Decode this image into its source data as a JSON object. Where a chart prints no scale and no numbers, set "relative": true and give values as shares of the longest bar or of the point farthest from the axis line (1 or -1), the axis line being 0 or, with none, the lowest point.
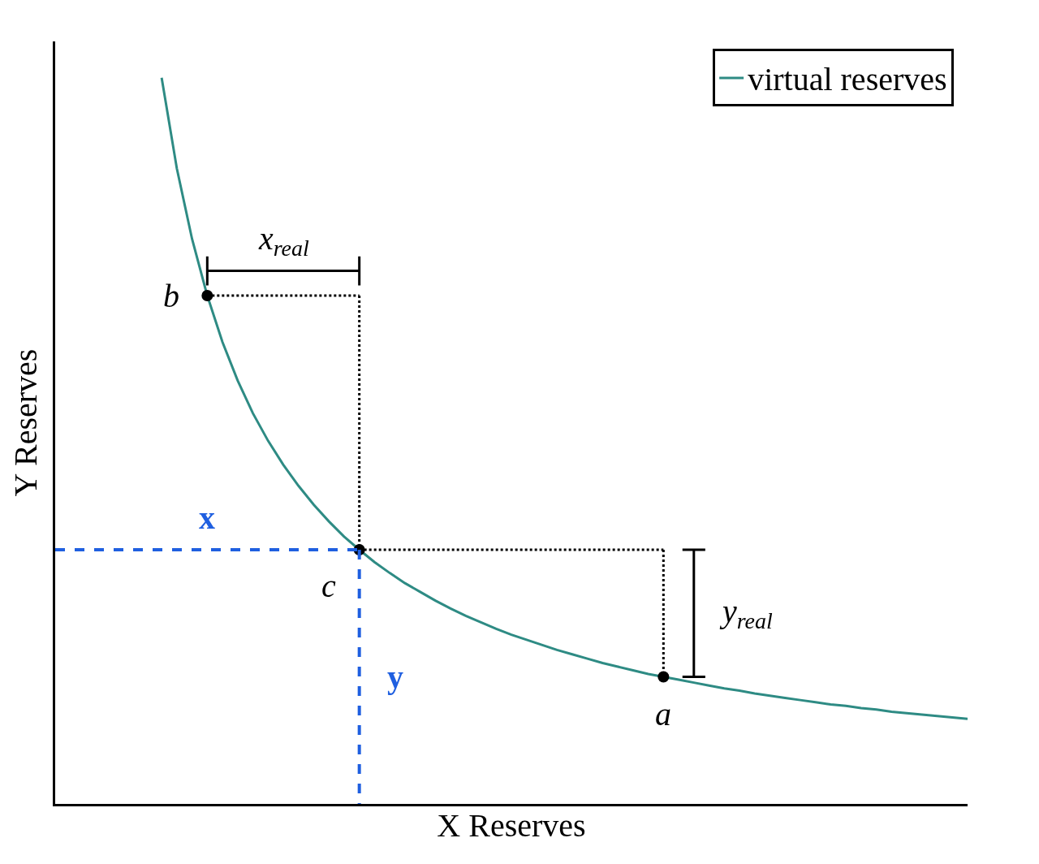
{
  "chart_data": {
    "type": "line",
    "relative": true,
    "xlabel": "X Reserves",
    "ylabel": "Y Reserves",
    "legend": "top right",
    "line_style": "solid",
    "categories": [
      null,
      null,
      null,
      null,
      null,
      null,
      null,
      null,
      null,
      null,
      null,
      null,
      null,
      null,
      null,
      null,
      null,
      null,
      null,
      null,
      null,
      null,
      null,
      null,
      null,
      null,
      null,
      null,
      null,
      null,
      null,
      null,
      null,
      null,
      null,
      null,
      null,
      null,
      null,
      null,
      null,
      null,
      null,
      null,
      null,
      null,
      null,
      null,
      null,
      null,
      null,
      null,
      null,
      null,
      null,
      null,
      null,
      null,
      null,
      null,
      null
    ],
    "series": [
      {
        "name": "virtual reserves",
        "color": "#2e8b84",
        "values": [
          null,
          null,
          null,
          null,
          null,
          null,
          null,
          1,
          0.875,
          0.778,
          0.7,
          0.636,
          0.583,
          0.538,
          0.5,
          0.467,
          0.438,
          0.412,
          0.389,
          0.368,
          0.35,
          0.333,
          0.318,
          0.304,
          0.292,
          0.28,
          0.269,
          0.259,
          0.25,
          0.241,
          0.233,
          0.226,
          0.219,
          0.212,
          0.206,
          0.2,
          0.194,
          0.189,
          0.184,
          0.179,
          0.175,
          0.171,
          0.167,
          0.163,
          0.159,
          0.156,
          0.152,
          0.149,
          0.146,
          0.143,
          0.14,
          0.137,
          0.135,
          0.132,
          0.13,
          0.127,
          0.125,
          0.123,
          0.121,
          0.119,
          0.117
        ]
      },
      {
        "marker": "circle",
        "line_style": "none",
        "color": "#000000",
        "values": [
          null,
          null,
          null,
          null,
          null,
          null,
          null,
          null,
          null,
          null,
          0.7,
          null,
          null,
          null,
          null,
          null,
          null,
          null,
          null,
          null,
          0.35,
          null,
          null,
          null,
          null,
          null,
          null,
          null,
          null,
          null,
          null,
          null,
          null,
          null,
          null,
          null,
          null,
          null,
          null,
          null,
          0.175,
          null,
          null,
          null,
          null,
          null,
          null,
          null,
          null,
          null,
          null,
          null,
          null,
          null,
          null,
          null,
          null,
          null,
          null,
          null,
          null
        ]
      }
    ],
    "annotations": [
      "b",
      "c",
      "a",
      "x$_{real}$",
      "y$_{real}$",
      "x",
      "y"
    ]
  }
}
